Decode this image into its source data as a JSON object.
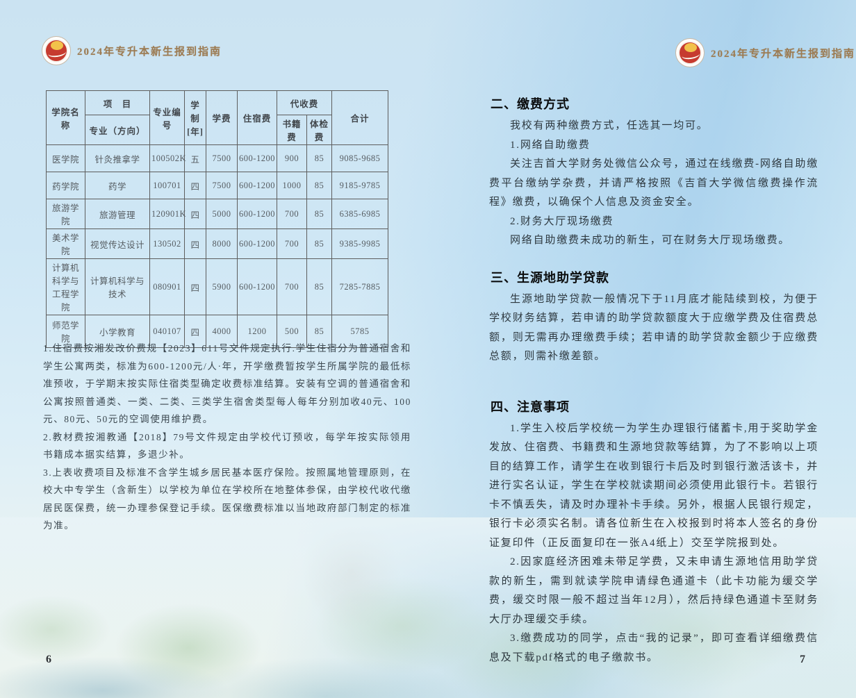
{
  "header": {
    "title": "2024年专升本新生报到指南"
  },
  "colors": {
    "header_title": "#9c7b52",
    "logo_red": "#c63b2f",
    "logo_gold": "#f2c24b",
    "sky_blue": "#cfe7f5"
  },
  "left_page": {
    "page_number": "6",
    "table": {
      "headers": {
        "college": "学院名称",
        "item": "项　目",
        "major": "专业（方向）",
        "major_code": "专业编号",
        "duration": "学制[年]",
        "tuition": "学费",
        "accommodation": "住宿费",
        "collect_fee": "代收费",
        "books_fee": "书籍费",
        "physical_fee": "体检费",
        "total": "合计"
      },
      "rows": [
        {
          "cells": [
            "医学院",
            "针灸推拿学",
            "100502K",
            "五",
            "7500",
            "600-1200",
            "900",
            "85",
            "9085-9685"
          ]
        },
        {
          "cells": [
            "药学院",
            "药学",
            "100701",
            "四",
            "7500",
            "600-1200",
            "1000",
            "85",
            "9185-9785"
          ]
        },
        {
          "cells": [
            "旅游学院",
            "旅游管理",
            "120901K",
            "四",
            "5000",
            "600-1200",
            "700",
            "85",
            "6385-6985"
          ]
        },
        {
          "cells": [
            "美术学院",
            "视觉传达设计",
            "130502",
            "四",
            "8000",
            "600-1200",
            "700",
            "85",
            "9385-9985"
          ]
        },
        {
          "cells": [
            "计算机科学与工程学院",
            "计算机科学与技术",
            "080901",
            "四",
            "5900",
            "600-1200",
            "700",
            "85",
            "7285-7885"
          ]
        },
        {
          "cells": [
            "师范学院",
            "小学教育",
            "040107",
            "四",
            "4000",
            "1200",
            "500",
            "85",
            "5785"
          ]
        }
      ]
    },
    "notes": [
      "1.住宿费按湘发改价费规【2023】611号文件规定执行.学生住宿分为普通宿舍和学生公寓两类，标准为600-1200元/人·年，开学缴费暂按学生所属学院的最低标准预收，于学期末按实际住宿类型确定收费标准结算。安装有空调的普通宿舍和公寓按照普通类、一类、二类、三类学生宿舍类型每人每年分别加收40元、100元、80元、50元的空调使用维护费。",
      "2.教材费按湘教通【2018】79号文件规定由学校代订预收，每学年按实际领用书籍成本据实结算，多退少补。",
      "3.上表收费项目及标准不含学生城乡居民基本医疗保险。按照属地管理原则，在校大中专学生（含新生）以学校为单位在学校所在地整体参保，由学校代收代缴居民医保费，统一办理参保登记手续。医保缴费标准以当地政府部门制定的标准为准。"
    ]
  },
  "right_page": {
    "page_number": "7",
    "sections": [
      {
        "heading": "二、缴费方式",
        "paragraphs": [
          "我校有两种缴费方式，任选其一均可。",
          "1.网络自助缴费",
          "关注吉首大学财务处微信公众号，通过在线缴费-网络自助缴费平台缴纳学杂费，并请严格按照《吉首大学微信缴费操作流程》缴费，以确保个人信息及资金安全。",
          "2.财务大厅现场缴费",
          "网络自助缴费未成功的新生，可在财务大厅现场缴费。"
        ]
      },
      {
        "heading": "三、生源地助学贷款",
        "paragraphs": [
          "生源地助学贷款一般情况下于11月底才能陆续到校，为便于学校财务结算，若申请的助学贷款额度大于应缴学费及住宿费总额，则无需再办理缴费手续；若申请的助学贷款金额少于应缴费总额，则需补缴差额。"
        ]
      },
      {
        "heading": "四、注意事项",
        "paragraphs": [
          "1.学生入校后学校统一为学生办理银行储蓄卡,用于奖助学金发放、住宿费、书籍费和生源地贷款等结算，为了不影响以上项目的结算工作，请学生在收到银行卡后及时到银行激活该卡，并进行实名认证，学生在学校就读期间必须使用此银行卡。若银行卡不慎丢失，请及时办理补卡手续。另外，根据人民银行规定，银行卡必须实名制。请各位新生在入校报到时将本人签名的身份证复印件（正反面复印在一张A4纸上）交至学院报到处。",
          "2.因家庭经济困难未带足学费，又未申请生源地信用助学贷款的新生，需到就读学院申请绿色通道卡（此卡功能为缓交学费，缓交时限一般不超过当年12月），然后持绿色通道卡至财务大厅办理缓交手续。",
          "3.缴费成功的同学，点击“我的记录”，即可查看详细缴费信息及下载pdf格式的电子缴款书。"
        ]
      }
    ]
  }
}
